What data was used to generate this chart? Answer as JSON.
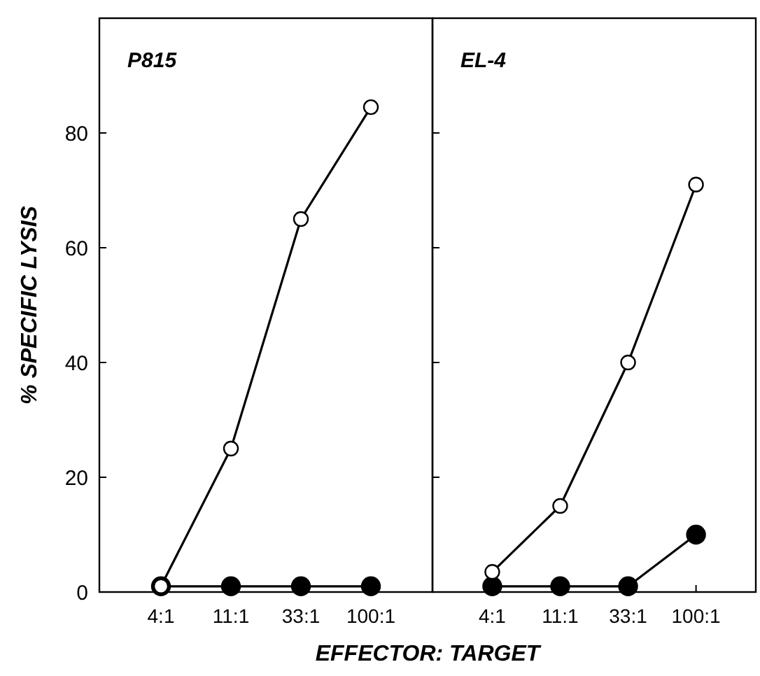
{
  "chart_data": [
    {
      "type": "line",
      "title": "P815",
      "ylabel": "% SPECIFIC LYSIS",
      "xlabel": "EFFECTOR: TARGET",
      "categories": [
        "4:1",
        "11:1",
        "33:1",
        "100:1"
      ],
      "ylim": [
        0,
        100
      ],
      "yticks": [
        0,
        20,
        40,
        60,
        80
      ],
      "marker": "circle",
      "series": [
        {
          "color": "#ffffff",
          "values": [
            1,
            25,
            65,
            84.5
          ]
        },
        {
          "color": "#000000",
          "values": [
            1,
            1,
            1,
            1
          ]
        }
      ]
    },
    {
      "type": "line",
      "title": "EL-4",
      "categories": [
        "4:1",
        "11:1",
        "33:1",
        "100:1"
      ],
      "ylim": [
        0,
        100
      ],
      "yticks": [
        0,
        20,
        40,
        60,
        80
      ],
      "tick_labels": "x",
      "marker": "circle",
      "series": [
        {
          "color": "#ffffff",
          "values": [
            3.5,
            15,
            40,
            71
          ]
        },
        {
          "color": "#000000",
          "values": [
            1,
            1,
            1,
            10
          ]
        }
      ]
    }
  ]
}
